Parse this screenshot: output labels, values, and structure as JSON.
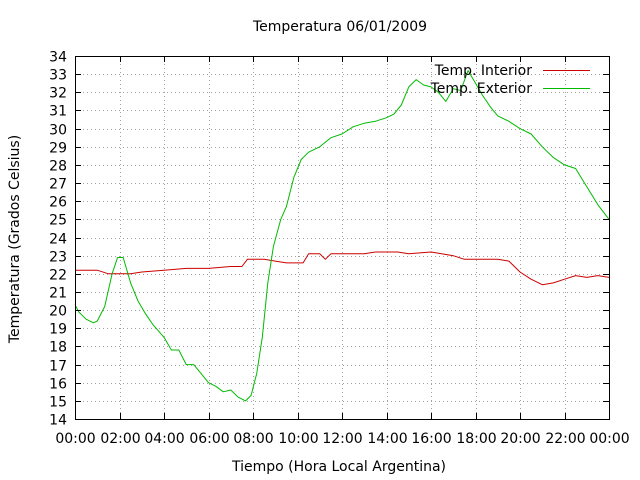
{
  "chart_data": {
    "type": "line",
    "title": "Temperatura 06/01/2009",
    "xlabel": "Tiempo (Hora Local Argentina)",
    "ylabel": "Temperatura (Grados Celsius)",
    "xlim": [
      "00:00",
      "24:00"
    ],
    "ylim": [
      14,
      34
    ],
    "x_ticks": [
      "00:00",
      "02:00",
      "04:00",
      "06:00",
      "08:00",
      "10:00",
      "12:00",
      "14:00",
      "16:00",
      "18:00",
      "20:00",
      "22:00",
      "00:00"
    ],
    "y_ticks": [
      14,
      15,
      16,
      17,
      18,
      19,
      20,
      21,
      22,
      23,
      24,
      25,
      26,
      27,
      28,
      29,
      30,
      31,
      32,
      33,
      34
    ],
    "grid": true,
    "legend_position": "top-right",
    "series": [
      {
        "name": "Temp. Interior",
        "color": "#cc0000",
        "points": [
          [
            "00:00",
            22.2
          ],
          [
            "01:00",
            22.2
          ],
          [
            "01:30",
            22.0
          ],
          [
            "02:30",
            22.0
          ],
          [
            "03:00",
            22.1
          ],
          [
            "04:00",
            22.2
          ],
          [
            "05:00",
            22.3
          ],
          [
            "06:00",
            22.3
          ],
          [
            "07:00",
            22.4
          ],
          [
            "07:30",
            22.4
          ],
          [
            "07:45",
            22.8
          ],
          [
            "08:30",
            22.8
          ],
          [
            "09:00",
            22.7
          ],
          [
            "09:30",
            22.6
          ],
          [
            "10:15",
            22.6
          ],
          [
            "10:30",
            23.1
          ],
          [
            "11:00",
            23.1
          ],
          [
            "11:15",
            22.8
          ],
          [
            "11:30",
            23.1
          ],
          [
            "13:00",
            23.1
          ],
          [
            "13:30",
            23.2
          ],
          [
            "14:30",
            23.2
          ],
          [
            "15:00",
            23.1
          ],
          [
            "16:00",
            23.2
          ],
          [
            "17:00",
            23.0
          ],
          [
            "17:30",
            22.8
          ],
          [
            "18:00",
            22.8
          ],
          [
            "19:00",
            22.8
          ],
          [
            "19:30",
            22.7
          ],
          [
            "20:00",
            22.1
          ],
          [
            "20:30",
            21.7
          ],
          [
            "21:00",
            21.4
          ],
          [
            "21:30",
            21.5
          ],
          [
            "22:00",
            21.7
          ],
          [
            "22:30",
            21.9
          ],
          [
            "23:00",
            21.8
          ],
          [
            "23:30",
            21.9
          ],
          [
            "24:00",
            21.8
          ]
        ]
      },
      {
        "name": "Temp. Exterior",
        "color": "#00bb00",
        "points": [
          [
            "00:00",
            20.3
          ],
          [
            "00:10",
            19.9
          ],
          [
            "00:30",
            19.5
          ],
          [
            "00:50",
            19.3
          ],
          [
            "01:00",
            19.4
          ],
          [
            "01:20",
            20.2
          ],
          [
            "01:40",
            22.0
          ],
          [
            "01:55",
            22.9
          ],
          [
            "02:10",
            22.9
          ],
          [
            "02:30",
            21.5
          ],
          [
            "02:50",
            20.5
          ],
          [
            "03:10",
            19.8
          ],
          [
            "03:30",
            19.2
          ],
          [
            "04:00",
            18.5
          ],
          [
            "04:20",
            17.8
          ],
          [
            "04:40",
            17.8
          ],
          [
            "05:00",
            17.0
          ],
          [
            "05:20",
            17.0
          ],
          [
            "05:40",
            16.5
          ],
          [
            "06:00",
            16.0
          ],
          [
            "06:20",
            15.8
          ],
          [
            "06:40",
            15.5
          ],
          [
            "07:00",
            15.6
          ],
          [
            "07:20",
            15.2
          ],
          [
            "07:40",
            15.0
          ],
          [
            "07:55",
            15.3
          ],
          [
            "08:10",
            16.5
          ],
          [
            "08:25",
            18.5
          ],
          [
            "08:40",
            21.5
          ],
          [
            "08:55",
            23.5
          ],
          [
            "09:15",
            25.0
          ],
          [
            "09:30",
            25.7
          ],
          [
            "09:50",
            27.3
          ],
          [
            "10:10",
            28.3
          ],
          [
            "10:30",
            28.7
          ],
          [
            "11:00",
            29.0
          ],
          [
            "11:30",
            29.5
          ],
          [
            "12:00",
            29.7
          ],
          [
            "12:30",
            30.1
          ],
          [
            "13:00",
            30.3
          ],
          [
            "13:30",
            30.4
          ],
          [
            "14:00",
            30.6
          ],
          [
            "14:20",
            30.8
          ],
          [
            "14:40",
            31.3
          ],
          [
            "15:00",
            32.3
          ],
          [
            "15:20",
            32.7
          ],
          [
            "15:40",
            32.4
          ],
          [
            "16:00",
            32.3
          ],
          [
            "16:20",
            32.0
          ],
          [
            "16:40",
            31.5
          ],
          [
            "17:00",
            32.2
          ],
          [
            "17:20",
            32.1
          ],
          [
            "17:40",
            33.2
          ],
          [
            "18:00",
            32.5
          ],
          [
            "18:20",
            31.8
          ],
          [
            "18:40",
            31.2
          ],
          [
            "19:00",
            30.7
          ],
          [
            "19:30",
            30.4
          ],
          [
            "20:00",
            30.0
          ],
          [
            "20:30",
            29.7
          ],
          [
            "21:00",
            29.0
          ],
          [
            "21:30",
            28.4
          ],
          [
            "22:00",
            28.0
          ],
          [
            "22:30",
            27.8
          ],
          [
            "23:00",
            26.8
          ],
          [
            "23:30",
            25.8
          ],
          [
            "24:00",
            25.0
          ]
        ]
      }
    ]
  }
}
